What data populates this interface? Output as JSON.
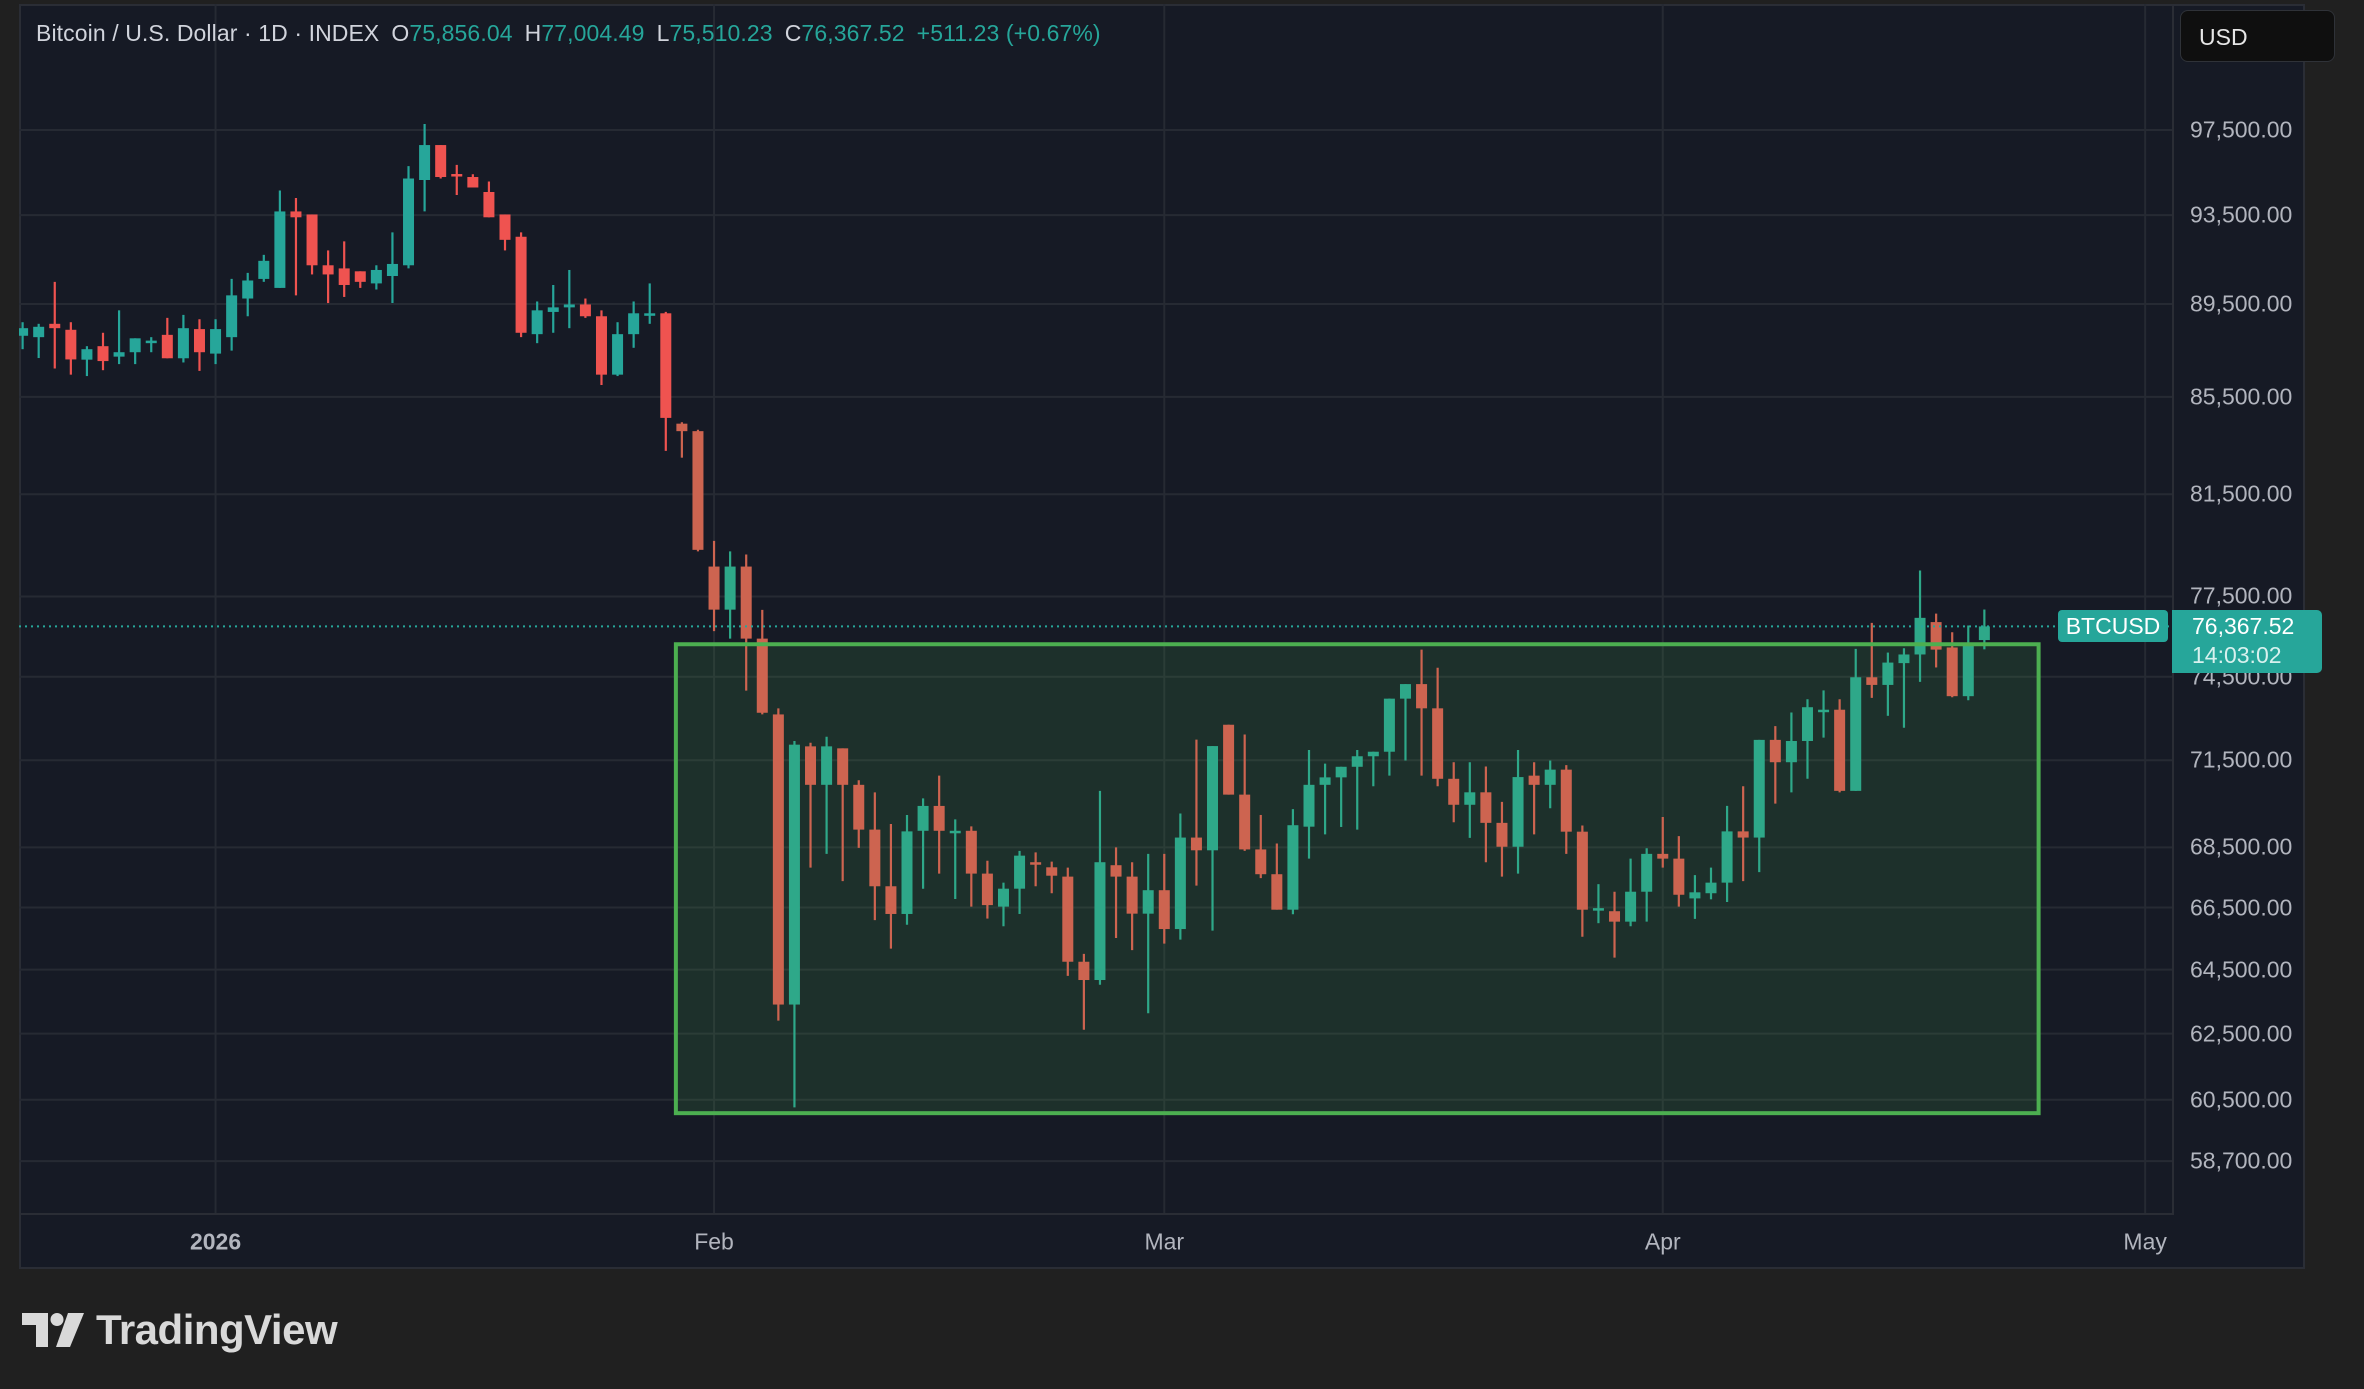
{
  "header": {
    "symbol_title": "Bitcoin / U.S. Dollar · 1D · INDEX",
    "open_label": "O",
    "open": "75,856.04",
    "high_label": "H",
    "high": "77,004.49",
    "low_label": "L",
    "low": "75,510.23",
    "close_label": "C",
    "close": "76,367.52",
    "change": "+511.23 (+0.67%)"
  },
  "currency_button": "USD",
  "last_price": {
    "symbol": "BTCUSD",
    "price": "76,367.52",
    "countdown": "14:03:02"
  },
  "branding": {
    "logo_text": "TradingView",
    "logo_icon": "tradingview-logo-icon"
  },
  "colors": {
    "up": "#26a69a",
    "down": "#ef5350",
    "up_in_box": "#2ea889",
    "down_in_box": "#cd6450",
    "box_border": "#4caf50",
    "box_fill": "rgba(76,175,80,0.15)",
    "grid": "#262a33",
    "background": "#161a25"
  },
  "chart_data": {
    "type": "candlestick",
    "title": "Bitcoin / U.S. Dollar · 1D · INDEX",
    "xlabel": "",
    "ylabel": "USD",
    "y_scale": "log",
    "ylim": [
      57500,
      101000
    ],
    "grid": true,
    "x_ticks": [
      {
        "label": "2026",
        "index": 12,
        "bold": true
      },
      {
        "label": "Feb",
        "index": 43
      },
      {
        "label": "Mar",
        "index": 71
      },
      {
        "label": "Apr",
        "index": 102
      },
      {
        "label": "May",
        "index": 132
      }
    ],
    "y_ticks": [
      "97,500.00",
      "93,500.00",
      "89,500.00",
      "85,500.00",
      "81,500.00",
      "77,500.00",
      "74,500.00",
      "71,500.00",
      "68,500.00",
      "66,500.00",
      "64,500.00",
      "62,500.00",
      "60,500.00",
      "58,700.00"
    ],
    "y_tick_values": [
      97500,
      93500,
      89500,
      85500,
      81500,
      77500,
      74500,
      71500,
      68500,
      66500,
      64500,
      62500,
      60500,
      58700
    ],
    "last_price_line": 76367.52,
    "rectangle": {
      "start_index": 41,
      "end_index": 125,
      "top": 75700,
      "bottom": 60100
    },
    "candles_ohlc": [
      [
        88110,
        88700,
        87530,
        88440
      ],
      [
        88050,
        88630,
        87150,
        88500
      ],
      [
        88630,
        90480,
        86700,
        88440
      ],
      [
        88370,
        88700,
        86440,
        87090
      ],
      [
        87080,
        87660,
        86380,
        87530
      ],
      [
        87660,
        88240,
        86630,
        87020
      ],
      [
        87210,
        89220,
        86890,
        87400
      ],
      [
        87400,
        87660,
        86890,
        88000
      ],
      [
        87790,
        88050,
        87400,
        87900
      ],
      [
        88150,
        88890,
        87340,
        87140
      ],
      [
        87140,
        89020,
        86960,
        88440
      ],
      [
        88400,
        88830,
        86600,
        87400
      ],
      [
        87340,
        88830,
        86890,
        88400
      ],
      [
        88050,
        90610,
        87470,
        89880
      ],
      [
        89740,
        90880,
        88960,
        90540
      ],
      [
        90610,
        91690,
        90480,
        91420
      ],
      [
        90210,
        94640,
        90210,
        93670
      ],
      [
        93670,
        94290,
        89880,
        93400
      ],
      [
        93530,
        93530,
        90810,
        91220
      ],
      [
        91220,
        91890,
        89540,
        90810
      ],
      [
        91080,
        92300,
        89810,
        90340
      ],
      [
        90950,
        90950,
        90210,
        90480
      ],
      [
        90410,
        91220,
        90140,
        91010
      ],
      [
        90740,
        92710,
        89540,
        91280
      ],
      [
        91220,
        95780,
        91080,
        95200
      ],
      [
        95130,
        97790,
        93670,
        96780
      ],
      [
        96780,
        96150,
        95200,
        95270
      ],
      [
        95410,
        95840,
        94430,
        95340
      ],
      [
        95270,
        95400,
        94850,
        94780
      ],
      [
        94570,
        95060,
        93530,
        93400
      ],
      [
        93530,
        93530,
        91890,
        92370
      ],
      [
        92510,
        92710,
        88050,
        88240
      ],
      [
        88180,
        89610,
        87790,
        89220
      ],
      [
        89150,
        90340,
        88240,
        89350
      ],
      [
        89350,
        91010,
        88440,
        89480
      ],
      [
        89480,
        89740,
        88890,
        88960
      ],
      [
        88960,
        89220,
        86000,
        86440
      ],
      [
        86440,
        88700,
        86380,
        88180
      ],
      [
        88180,
        89610,
        87590,
        89090
      ],
      [
        89020,
        90410,
        88630,
        89090
      ],
      [
        89090,
        89150,
        83260,
        84620
      ],
      [
        84380,
        84440,
        82980,
        84070
      ],
      [
        84070,
        84130,
        79240,
        79300
      ],
      [
        78650,
        79650,
        76190,
        77000
      ],
      [
        77000,
        79240,
        75910,
        78650
      ],
      [
        78650,
        79120,
        73990,
        75910
      ],
      [
        75910,
        76990,
        73130,
        73190
      ],
      [
        73130,
        73350,
        62900,
        63400
      ],
      [
        63400,
        72180,
        60270,
        72050
      ],
      [
        71990,
        72120,
        67820,
        70640
      ],
      [
        70640,
        72330,
        68280,
        71990
      ],
      [
        71920,
        71220,
        67370,
        70640
      ],
      [
        70640,
        70800,
        68480,
        69100
      ],
      [
        69100,
        70380,
        66090,
        67200
      ],
      [
        67200,
        69290,
        65170,
        66290
      ],
      [
        66290,
        69600,
        65940,
        69040
      ],
      [
        69060,
        70170,
        67120,
        69910
      ],
      [
        69910,
        70960,
        67620,
        69060
      ],
      [
        68990,
        69450,
        66780,
        69060
      ],
      [
        69060,
        69210,
        66530,
        67620
      ],
      [
        67620,
        68050,
        66140,
        66580
      ],
      [
        66530,
        67320,
        65890,
        67120
      ],
      [
        67120,
        68380,
        66290,
        68220
      ],
      [
        68000,
        68330,
        67200,
        67950
      ],
      [
        67830,
        68020,
        66970,
        67550
      ],
      [
        67520,
        67820,
        64300,
        64750
      ],
      [
        64750,
        65000,
        62620,
        64170
      ],
      [
        64170,
        70430,
        64020,
        68000
      ],
      [
        67900,
        68500,
        65510,
        67520
      ],
      [
        67520,
        68000,
        65120,
        66300
      ],
      [
        66300,
        68280,
        63130,
        67070
      ],
      [
        67070,
        68280,
        65330,
        65800
      ],
      [
        65800,
        69650,
        65460,
        68830
      ],
      [
        68830,
        72230,
        67220,
        68400
      ],
      [
        68400,
        69040,
        65750,
        72000
      ],
      [
        72760,
        72560,
        70430,
        70300
      ],
      [
        70300,
        72410,
        68380,
        68430
      ],
      [
        68430,
        69600,
        67470,
        67600
      ],
      [
        67600,
        68630,
        66900,
        66430
      ],
      [
        66430,
        69800,
        66280,
        69250
      ],
      [
        69200,
        71860,
        68120,
        70640
      ],
      [
        70640,
        71380,
        68940,
        70900
      ],
      [
        70900,
        71060,
        69190,
        71270
      ],
      [
        71270,
        71860,
        69100,
        71640
      ],
      [
        71640,
        71460,
        70590,
        71800
      ],
      [
        71800,
        72230,
        70960,
        73700
      ],
      [
        73700,
        74200,
        71490,
        74230
      ],
      [
        74230,
        75500,
        70960,
        73350
      ],
      [
        73350,
        74830,
        70590,
        70850
      ],
      [
        70850,
        71430,
        69350,
        69950
      ],
      [
        69950,
        71430,
        68820,
        70380
      ],
      [
        70380,
        71280,
        68000,
        69330
      ],
      [
        69330,
        70050,
        67520,
        68520
      ],
      [
        68520,
        71860,
        67620,
        70910
      ],
      [
        70960,
        71430,
        68940,
        70640
      ],
      [
        70640,
        71490,
        69830,
        71170
      ],
      [
        71170,
        71330,
        68280,
        69030
      ],
      [
        69030,
        69240,
        65550,
        66430
      ],
      [
        66480,
        67270,
        65990,
        66480
      ],
      [
        66380,
        67020,
        64880,
        66040
      ],
      [
        66040,
        68120,
        65890,
        67020
      ],
      [
        67020,
        68470,
        66040,
        68280
      ],
      [
        68280,
        69530,
        67820,
        68120
      ],
      [
        68120,
        68880,
        66530,
        66920
      ],
      [
        66800,
        67570,
        66130,
        67000
      ],
      [
        66970,
        67820,
        66770,
        67320
      ],
      [
        67320,
        69910,
        66680,
        69040
      ],
      [
        69040,
        70590,
        67370,
        68830
      ],
      [
        68830,
        72070,
        67670,
        72220
      ],
      [
        72220,
        72710,
        69990,
        71430
      ],
      [
        71430,
        73200,
        70380,
        72180
      ],
      [
        72180,
        73680,
        70850,
        73390
      ],
      [
        73300,
        74000,
        72300,
        73300
      ],
      [
        73300,
        73680,
        70380,
        70430
      ],
      [
        70430,
        75530,
        70510,
        74480
      ],
      [
        74480,
        76500,
        73730,
        74200
      ],
      [
        74200,
        75390,
        73080,
        75020
      ],
      [
        75000,
        75550,
        72650,
        75320
      ],
      [
        75320,
        78500,
        74310,
        76690
      ],
      [
        76530,
        76850,
        74840,
        75500
      ],
      [
        75580,
        76150,
        73750,
        73790
      ],
      [
        73790,
        76400,
        73640,
        75720
      ],
      [
        75856.04,
        77004.49,
        75510.23,
        76367.52
      ]
    ]
  }
}
